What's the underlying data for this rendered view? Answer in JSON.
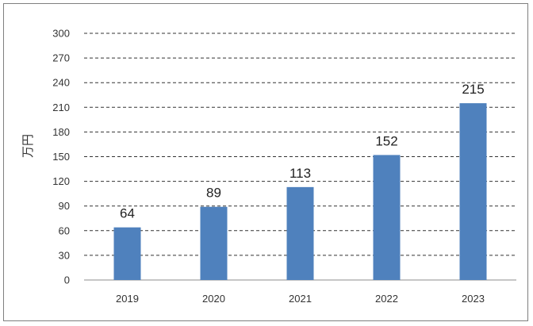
{
  "chart_data": {
    "type": "bar",
    "categories": [
      "2019",
      "2020",
      "2021",
      "2022",
      "2023"
    ],
    "values": [
      64,
      89,
      113,
      152,
      215
    ],
    "data_labels": [
      "64",
      "89",
      "113",
      "152",
      "215"
    ],
    "ylabel": "万円",
    "ylim": [
      0,
      300
    ],
    "yticks": [
      0,
      30,
      60,
      90,
      120,
      150,
      180,
      210,
      240,
      270,
      300
    ],
    "grid": "horizontal-dashed",
    "bar_color": "#4f81bd",
    "legend": "none"
  }
}
